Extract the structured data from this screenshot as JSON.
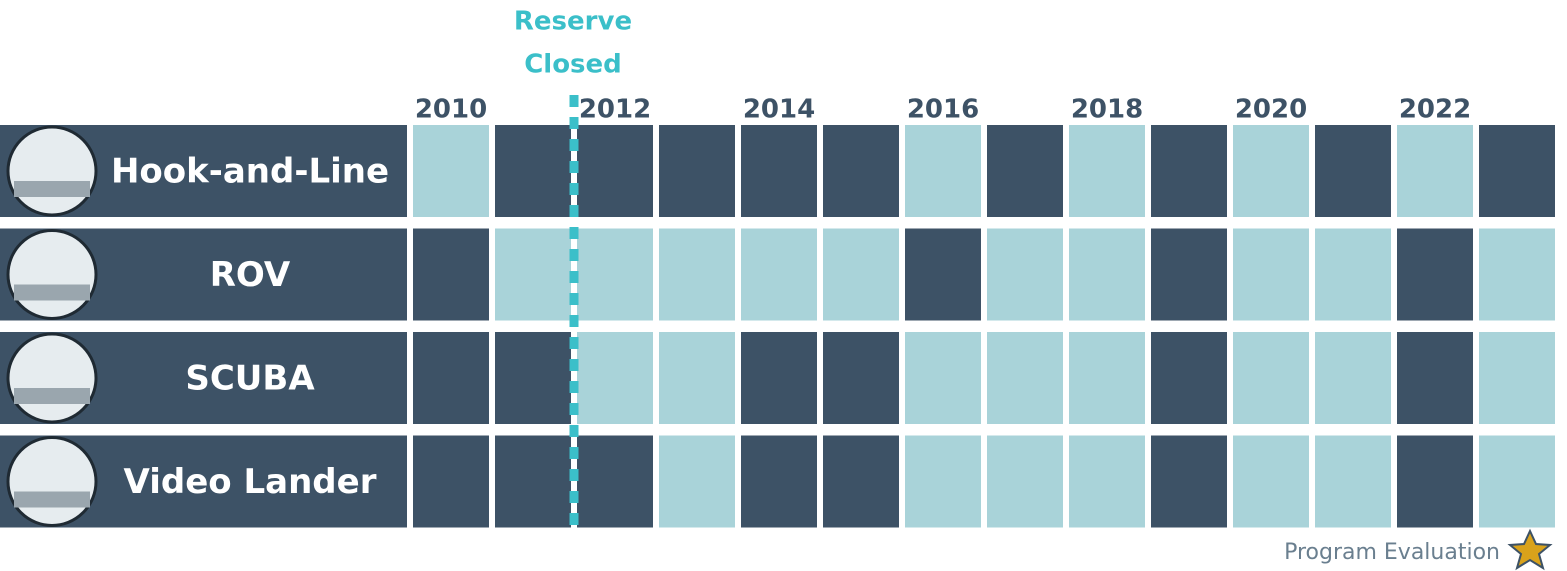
{
  "annotation": {
    "lines": [
      "Reserve",
      "Closed"
    ],
    "color": "#3bbfc9"
  },
  "years": [
    "2010",
    null,
    "2012",
    null,
    "2014",
    null,
    "2016",
    null,
    "2018",
    null,
    "2020",
    null,
    "2022",
    null
  ],
  "colors": {
    "0": "#3d5266",
    "1": "#a9d3d9"
  },
  "rows": [
    {
      "label": "Hook-and-Line",
      "cells": [
        1,
        0,
        0,
        0,
        0,
        0,
        1,
        0,
        1,
        0,
        1,
        0,
        1,
        0
      ]
    },
    {
      "label": "ROV",
      "cells": [
        0,
        1,
        1,
        1,
        1,
        1,
        0,
        1,
        1,
        0,
        1,
        1,
        0,
        1
      ]
    },
    {
      "label": "SCUBA",
      "cells": [
        0,
        0,
        1,
        1,
        0,
        0,
        1,
        1,
        1,
        0,
        1,
        1,
        0,
        1
      ]
    },
    {
      "label": "Video Lander",
      "cells": [
        0,
        0,
        0,
        1,
        0,
        0,
        1,
        1,
        1,
        0,
        1,
        1,
        0,
        1
      ]
    }
  ],
  "footer": "Program Evaluation"
}
